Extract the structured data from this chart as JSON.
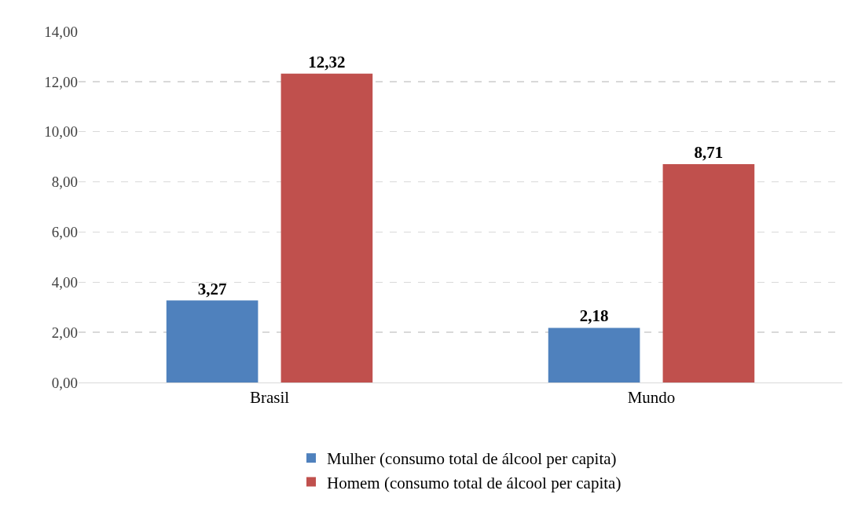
{
  "chart_data": {
    "type": "bar",
    "categories": [
      "Brasil",
      "Mundo"
    ],
    "series": [
      {
        "name": "Mulher (consumo total de álcool per capita)",
        "color": "#4f81bd",
        "values": [
          3.27,
          2.18
        ],
        "value_labels": [
          "3,27",
          "2,18"
        ]
      },
      {
        "name": "Homem (consumo total de álcool per capita)",
        "color": "#c0504d",
        "values": [
          12.32,
          8.71
        ],
        "value_labels": [
          "12,32",
          "8,71"
        ]
      }
    ],
    "ylim": [
      0,
      14
    ],
    "yticks": [
      {
        "value": 0,
        "label": "0,00"
      },
      {
        "value": 2,
        "label": "2,00"
      },
      {
        "value": 4,
        "label": "4,00"
      },
      {
        "value": 6,
        "label": "6,00"
      },
      {
        "value": 8,
        "label": "8,00"
      },
      {
        "value": 10,
        "label": "10,00"
      },
      {
        "value": 12,
        "label": "12,00"
      },
      {
        "value": 14,
        "label": "14,00"
      }
    ],
    "grid": "y",
    "legend": "bottom"
  }
}
